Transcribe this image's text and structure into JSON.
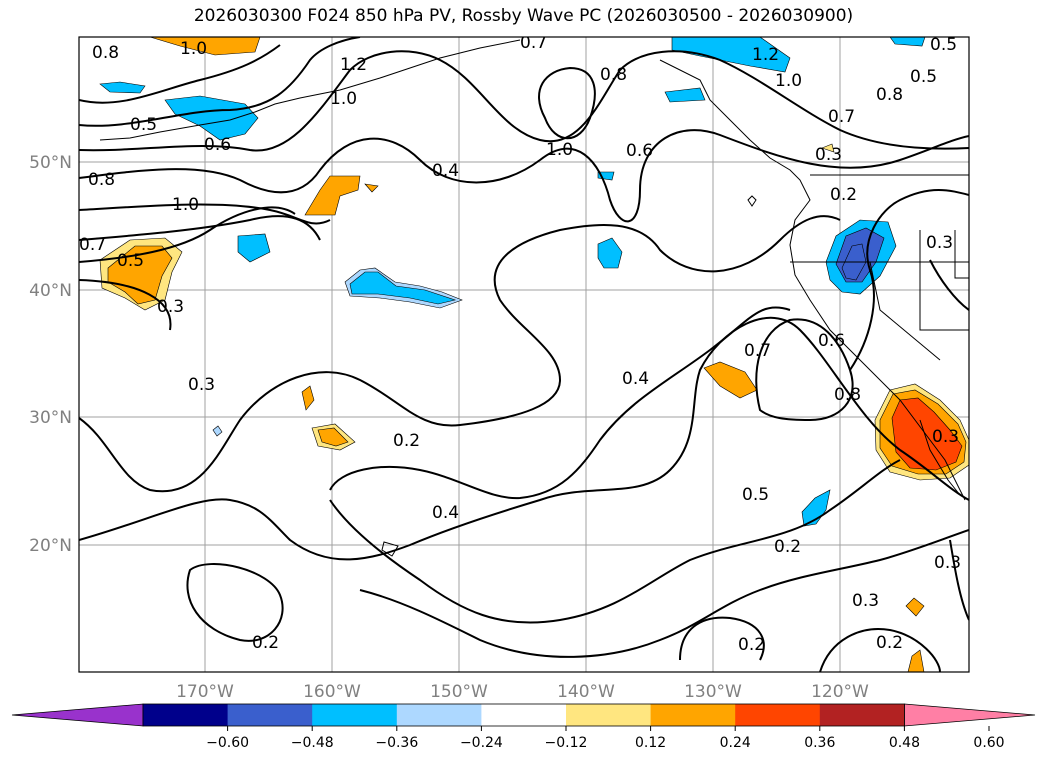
{
  "title": "2026030300 F024 850 hPa PV, Rossby Wave PC (2026030500 - 2026030900)",
  "map": {
    "lat_labels": [
      "50°N",
      "40°N",
      "30°N",
      "20°N"
    ],
    "lon_labels": [
      "170°W",
      "160°W",
      "150°W",
      "140°W",
      "130°W",
      "120°W"
    ]
  },
  "colorbar": {
    "colors": [
      "#9932cc",
      "#00008b",
      "#3a5fcd",
      "#00bfff",
      "#add8ff",
      "#ffffff",
      "#ffe680",
      "#ffa500",
      "#ff4500",
      "#b22222",
      "#ff7fa5"
    ],
    "tick_labels": [
      "−0.60",
      "−0.48",
      "−0.36",
      "−0.24",
      "−0.12",
      "0.12",
      "0.24",
      "0.36",
      "0.48",
      "0.60"
    ]
  },
  "contour_labels": [
    "0.8",
    "1.0",
    "0.5",
    "0.6",
    "0.8",
    "1.0",
    "0.7",
    "0.5",
    "0.3",
    "1.2",
    "1.0",
    "0.7",
    "0.8",
    "1.0",
    "0.6",
    "0.4",
    "1.2",
    "1.0",
    "0.5",
    "0.8",
    "0.7",
    "0.3",
    "0.2",
    "0.3",
    "0.3",
    "0.4",
    "0.2",
    "0.7",
    "0.6",
    "0.8",
    "0.3",
    "0.4",
    "0.5",
    "0.2",
    "0.3",
    "0.2",
    "0.3",
    "0.2",
    "0.2",
    "0.5"
  ]
}
